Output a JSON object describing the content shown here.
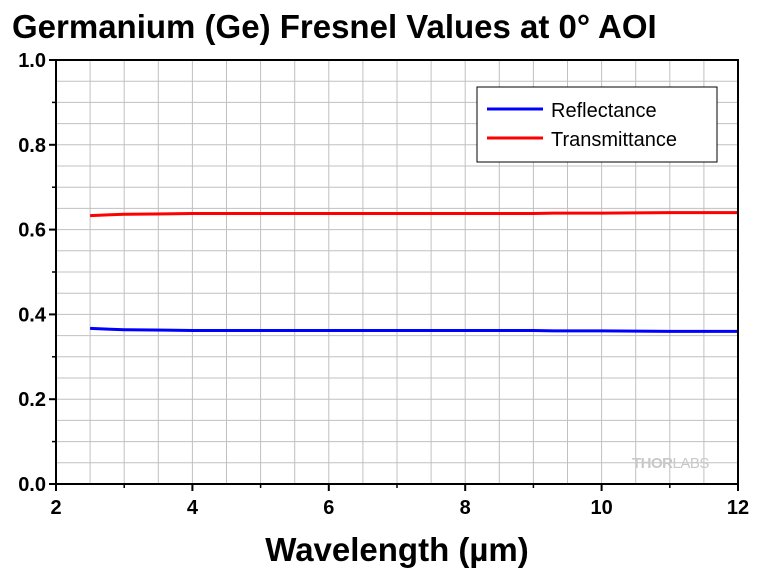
{
  "chart_data": {
    "type": "line",
    "title": "Germanium (Ge) Fresnel Values at 0° AOI",
    "xlabel": "Wavelength (µm)",
    "ylabel": "",
    "xlim": [
      2,
      12
    ],
    "ylim": [
      0.0,
      1.0
    ],
    "x_ticks": [
      "2",
      "4",
      "6",
      "8",
      "10",
      "12"
    ],
    "y_ticks": [
      "0.0",
      "0.2",
      "0.4",
      "0.6",
      "0.8",
      "1.0"
    ],
    "grid": true,
    "legend_position": "top-right",
    "series": [
      {
        "name": "Reflectance",
        "color": "#0000ff",
        "x": [
          2.5,
          2.8,
          3.0,
          3.6,
          4.0,
          5.0,
          6.0,
          7.0,
          8.0,
          9.0,
          9.3,
          10.0,
          11.0,
          12.0
        ],
        "y": [
          0.367,
          0.365,
          0.364,
          0.363,
          0.362,
          0.362,
          0.362,
          0.362,
          0.362,
          0.362,
          0.361,
          0.361,
          0.36,
          0.36
        ]
      },
      {
        "name": "Transmittance",
        "color": "#ff0000",
        "x": [
          2.5,
          2.8,
          3.0,
          3.6,
          4.0,
          5.0,
          6.0,
          7.0,
          8.0,
          9.0,
          9.3,
          10.0,
          11.0,
          12.0
        ],
        "y": [
          0.633,
          0.635,
          0.636,
          0.637,
          0.638,
          0.638,
          0.638,
          0.638,
          0.638,
          0.638,
          0.639,
          0.639,
          0.64,
          0.64
        ]
      }
    ]
  },
  "watermark": {
    "part1": "THOR",
    "part2": "LABS"
  }
}
